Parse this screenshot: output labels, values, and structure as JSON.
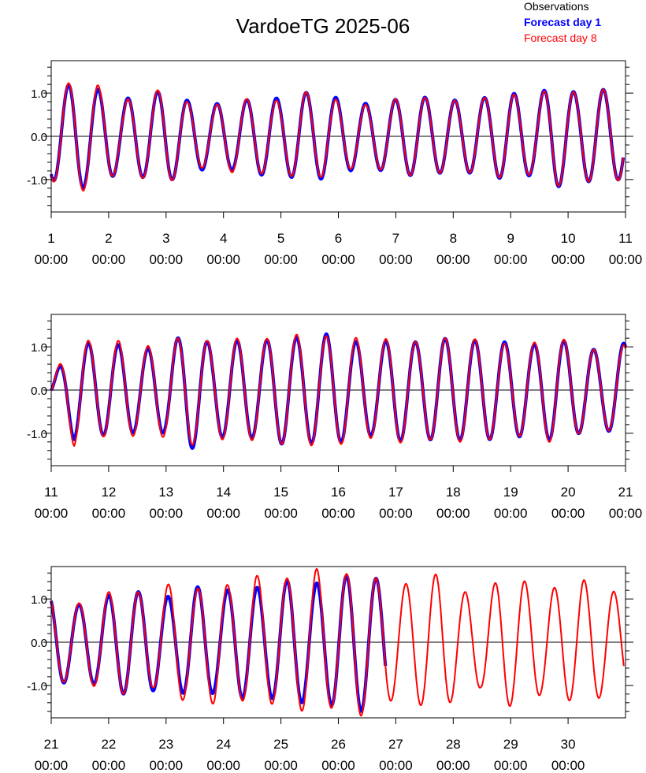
{
  "chart_data": {
    "type": "line",
    "title": "VardoeTG 2025-06",
    "legend": {
      "placement": "top-right",
      "entries": [
        {
          "label": "Observations",
          "color": "#000000",
          "bold": false
        },
        {
          "label": "Forecast day 1",
          "color": "#0000ff",
          "bold": true
        },
        {
          "label": "Forecast day 8",
          "color": "#ff0000",
          "bold": false
        }
      ]
    },
    "colors": {
      "observations": "#000000",
      "forecast_day_1": "#0000ff",
      "forecast_day_8": "#ff0000"
    },
    "ylim": [
      -1.75,
      1.75
    ],
    "y_ticks": [
      -1.0,
      0.0,
      1.0
    ],
    "y_tick_labels": [
      "-1.0",
      "0.0",
      "1.0"
    ],
    "zero_line": true,
    "grid": false,
    "panels": [
      {
        "x_range_days": [
          1,
          11
        ],
        "x_ticks": [
          {
            "day": "1",
            "time": "00:00"
          },
          {
            "day": "2",
            "time": "00:00"
          },
          {
            "day": "3",
            "time": "00:00"
          },
          {
            "day": "4",
            "time": "00:00"
          },
          {
            "day": "5",
            "time": "00:00"
          },
          {
            "day": "6",
            "time": "00:00"
          },
          {
            "day": "7",
            "time": "00:00"
          },
          {
            "day": "8",
            "time": "00:00"
          },
          {
            "day": "9",
            "time": "00:00"
          },
          {
            "day": "10",
            "time": "00:00"
          },
          {
            "day": "11",
            "time": "00:00"
          }
        ],
        "series": [
          {
            "name": "Forecast day 1",
            "x": [
              1.0,
              10.96
            ],
            "amplitudes": [
              1.0,
              1.25,
              1.1,
              0.85,
              0.95,
              1.08,
              0.82,
              0.75,
              0.78,
              0.9,
              0.88,
              1.02,
              0.98,
              0.8,
              0.75,
              0.85,
              0.93,
              0.85,
              0.83,
              0.9,
              1.02,
              0.9,
              1.2,
              1.0,
              1.1,
              0.98
            ]
          },
          {
            "name": "Forecast day 8",
            "x": [
              1.0,
              10.96
            ],
            "amplitudes": [
              1.02,
              1.3,
              1.2,
              0.8,
              0.97,
              1.12,
              0.78,
              0.7,
              0.85,
              0.88,
              0.82,
              1.04,
              0.92,
              0.76,
              0.72,
              0.86,
              0.92,
              0.85,
              0.82,
              0.9,
              1.0,
              0.88,
              1.18,
              1.0,
              1.1,
              1.0
            ]
          }
        ]
      },
      {
        "x_range_days": [
          11,
          21
        ],
        "x_ticks": [
          {
            "day": "11",
            "time": "00:00"
          },
          {
            "day": "12",
            "time": "00:00"
          },
          {
            "day": "13",
            "time": "00:00"
          },
          {
            "day": "14",
            "time": "00:00"
          },
          {
            "day": "15",
            "time": "00:00"
          },
          {
            "day": "16",
            "time": "00:00"
          },
          {
            "day": "17",
            "time": "00:00"
          },
          {
            "day": "18",
            "time": "00:00"
          },
          {
            "day": "19",
            "time": "00:00"
          },
          {
            "day": "20",
            "time": "00:00"
          },
          {
            "day": "21",
            "time": "00:00"
          }
        ],
        "series": [
          {
            "name": "Forecast day 1",
            "x": [
              11.0,
              21.0
            ],
            "amplitudes": [
              0.2,
              1.15,
              1.05,
              1.05,
              0.95,
              1.0,
              1.4,
              1.05,
              1.15,
              1.1,
              1.25,
              1.2,
              1.3,
              1.15,
              1.05,
              1.2,
              1.1,
              1.2,
              1.15,
              1.15,
              1.1,
              1.05,
              1.2,
              1.0,
              0.9,
              1.1
            ]
          },
          {
            "name": "Forecast day 8",
            "x": [
              11.0,
              21.0
            ],
            "amplitudes": [
              0.2,
              1.3,
              1.05,
              1.15,
              1.0,
              1.1,
              1.3,
              1.1,
              1.2,
              1.15,
              1.25,
              1.3,
              1.25,
              1.25,
              1.1,
              1.25,
              1.1,
              1.2,
              1.2,
              1.15,
              1.05,
              1.1,
              1.25,
              1.0,
              0.9,
              1.05
            ]
          }
        ]
      },
      {
        "x_range_days": [
          21,
          31
        ],
        "x_ticks": [
          {
            "day": "21",
            "time": "00:00"
          },
          {
            "day": "22",
            "time": "00:00"
          },
          {
            "day": "23",
            "time": "00:00"
          },
          {
            "day": "24",
            "time": "00:00"
          },
          {
            "day": "25",
            "time": "00:00"
          },
          {
            "day": "26",
            "time": "00:00"
          },
          {
            "day": "27",
            "time": "00:00"
          },
          {
            "day": "28",
            "time": "00:00"
          },
          {
            "day": "29",
            "time": "00:00"
          },
          {
            "day": "30",
            "time": "00:00"
          }
        ],
        "series": [
          {
            "name": "Forecast day 1",
            "x": [
              21.0,
              26.82
            ],
            "amplitudes": [
              1.05,
              0.85,
              1.0,
              1.2,
              1.15,
              1.05,
              1.3,
              1.15,
              1.3,
              1.25,
              1.45,
              1.35,
              1.5,
              1.6,
              1.4
            ]
          },
          {
            "name": "Forecast day 8",
            "x": [
              21.0,
              30.97
            ],
            "amplitudes": [
              1.05,
              0.85,
              1.0,
              1.2,
              1.2,
              1.05,
              1.45,
              1.2,
              1.45,
              1.25,
              1.55,
              1.4,
              1.55,
              1.7,
              1.45,
              1.75,
              1.45,
              1.3,
              1.45,
              1.6,
              1.2,
              1.05,
              1.5,
              1.45,
              1.2,
              1.3,
              1.45,
              1.25,
              1.1
            ]
          }
        ]
      }
    ]
  }
}
